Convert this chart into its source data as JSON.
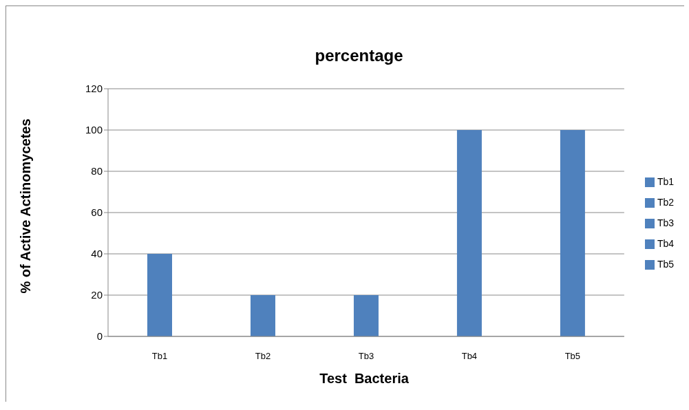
{
  "chart_data": {
    "type": "bar",
    "title": "percentage",
    "xlabel": "Test  Bacteria",
    "ylabel": "% of Active Actinomycetes",
    "categories": [
      "Tb1",
      "Tb2",
      "Tb3",
      "Tb4",
      "Tb5"
    ],
    "stacked": true,
    "series": [
      {
        "name": "Tb1",
        "color": "#4f81bd",
        "values": [
          40,
          null,
          null,
          null,
          null
        ]
      },
      {
        "name": "Tb2",
        "color": "#4f81bd",
        "values": [
          null,
          20,
          null,
          null,
          null
        ]
      },
      {
        "name": "Tb3",
        "color": "#4f81bd",
        "values": [
          null,
          null,
          20,
          null,
          null
        ]
      },
      {
        "name": "Tb4",
        "color": "#4f81bd",
        "values": [
          null,
          null,
          null,
          100,
          null
        ]
      },
      {
        "name": "Tb5",
        "color": "#4f81bd",
        "values": [
          null,
          null,
          null,
          null,
          100
        ]
      }
    ],
    "ylim": [
      0,
      120
    ],
    "yticks": [
      0,
      20,
      40,
      60,
      80,
      100,
      120
    ],
    "grid": "y",
    "legend": "right"
  }
}
